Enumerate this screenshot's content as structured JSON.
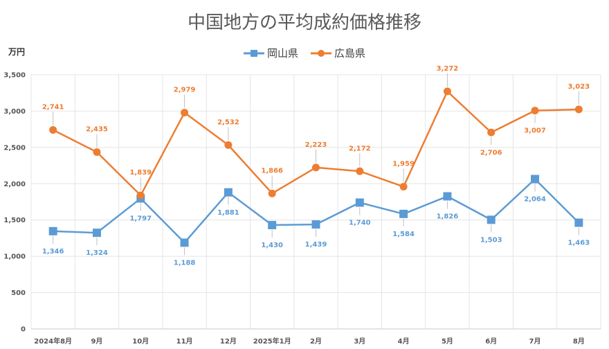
{
  "chart_data": {
    "type": "line",
    "title": "中国地方の平均成約価格推移",
    "ylabel": "万円",
    "xlabel": "",
    "ylim": [
      0,
      3500
    ],
    "yticks": [
      "0",
      "500",
      "1,000",
      "1,500",
      "2,000",
      "2,500",
      "3,000",
      "3,500"
    ],
    "ytick_values": [
      0,
      500,
      1000,
      1500,
      2000,
      2500,
      3000,
      3500
    ],
    "categories": [
      "2024年8月",
      "9月",
      "10月",
      "11月",
      "12月",
      "2025年1月",
      "2月",
      "3月",
      "4月",
      "5月",
      "6月",
      "7月",
      "8月"
    ],
    "grid": true,
    "legend_position": "top",
    "series": [
      {
        "name": "岡山県",
        "color": "#5B9BD5",
        "marker": "square",
        "values": [
          1346,
          1324,
          1797,
          1188,
          1881,
          1430,
          1439,
          1740,
          1584,
          1826,
          1503,
          2064,
          1463
        ],
        "labels": [
          "1,346",
          "1,324",
          "1,797",
          "1,188",
          "1,881",
          "1,430",
          "1,439",
          "1,740",
          "1,584",
          "1,826",
          "1,503",
          "2,064",
          "1,463"
        ]
      },
      {
        "name": "広島県",
        "color": "#ED7D31",
        "marker": "circle",
        "values": [
          2741,
          2435,
          1839,
          2979,
          2532,
          1866,
          2223,
          2172,
          1959,
          3272,
          2706,
          3007,
          3023
        ],
        "labels": [
          "2,741",
          "2,435",
          "1,839",
          "2,979",
          "2,532",
          "1,866",
          "2,223",
          "2,172",
          "1,959",
          "3,272",
          "2,706",
          "3,007",
          "3,023"
        ]
      }
    ]
  }
}
